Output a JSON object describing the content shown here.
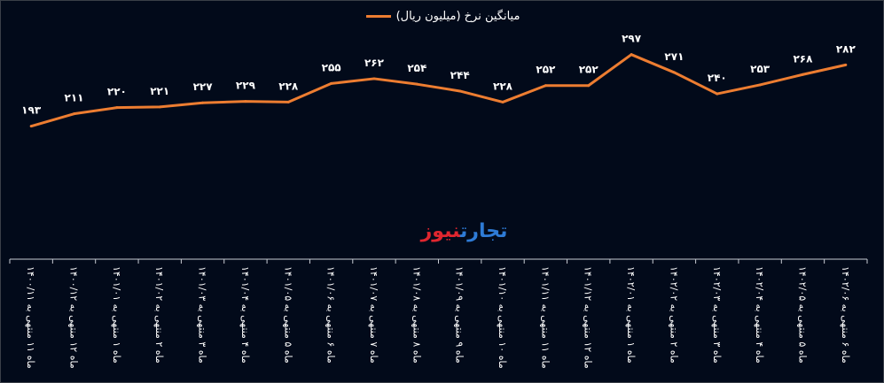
{
  "chart_data": {
    "type": "line",
    "title": "",
    "xlabel": "",
    "ylabel": "",
    "ylim": [
      0,
      350
    ],
    "grid": false,
    "legend_position": "top",
    "categories": [
      "ماه ۱۱ منتهی به ۱۴۰۰/۱۱",
      "ماه ۱۲ منتهی به ۱۴۰۰/۱۲",
      "ماه ۱ منتهی به ۱۴۰۱/۰۱",
      "ماه ۲ منتهی به ۱۴۰۱/۰۲",
      "ماه ۳ منتهی به ۱۴۰۱/۰۳",
      "ماه ۴ منتهی به ۱۴۰۱/۰۴",
      "ماه ۵ منتهی به ۱۴۰۱/۰۵",
      "ماه ۶ منتهی به ۱۴۰۱/۰۶",
      "ماه ۷ منتهی به ۱۴۰۱/۰۷",
      "ماه ۸ منتهی به ۱۴۰۱/۰۸",
      "ماه ۹ منتهی به ۱۴۰۱/۰۹",
      "ماه ۱۰ منتهی به ۱۴۰۱/۱۰",
      "ماه ۱۱ منتهی به ۱۴۰۱/۱۱",
      "ماه ۱۲ منتهی به ۱۴۰۱/۱۲",
      "ماه ۱ منتهی به ۱۴۰۲/۰۱",
      "ماه ۲ منتهی به ۱۴۰۲/۰۲",
      "ماه ۳ منتهی به ۱۴۰۲/۰۳",
      "ماه ۴ منتهی به ۱۴۰۲/۰۴",
      "ماه ۵ منتهی به ۱۴۰۲/۰۵",
      "ماه ۶ منتهی به ۱۴۰۲/۰۶"
    ],
    "series": [
      {
        "name": "میانگین نرخ (میلیون ریال)",
        "color": "#ED7D31",
        "values": [
          193,
          211,
          220,
          221,
          227,
          229,
          228,
          255,
          262,
          254,
          244,
          228,
          252,
          252,
          297,
          271,
          240,
          253,
          268,
          282
        ]
      }
    ]
  },
  "logo": {
    "part1": "تجارت",
    "part2": "نیوز"
  },
  "colors": {
    "background": "#020a1a",
    "logo_blue": "#2e7bd6",
    "logo_red": "#e0262f"
  }
}
